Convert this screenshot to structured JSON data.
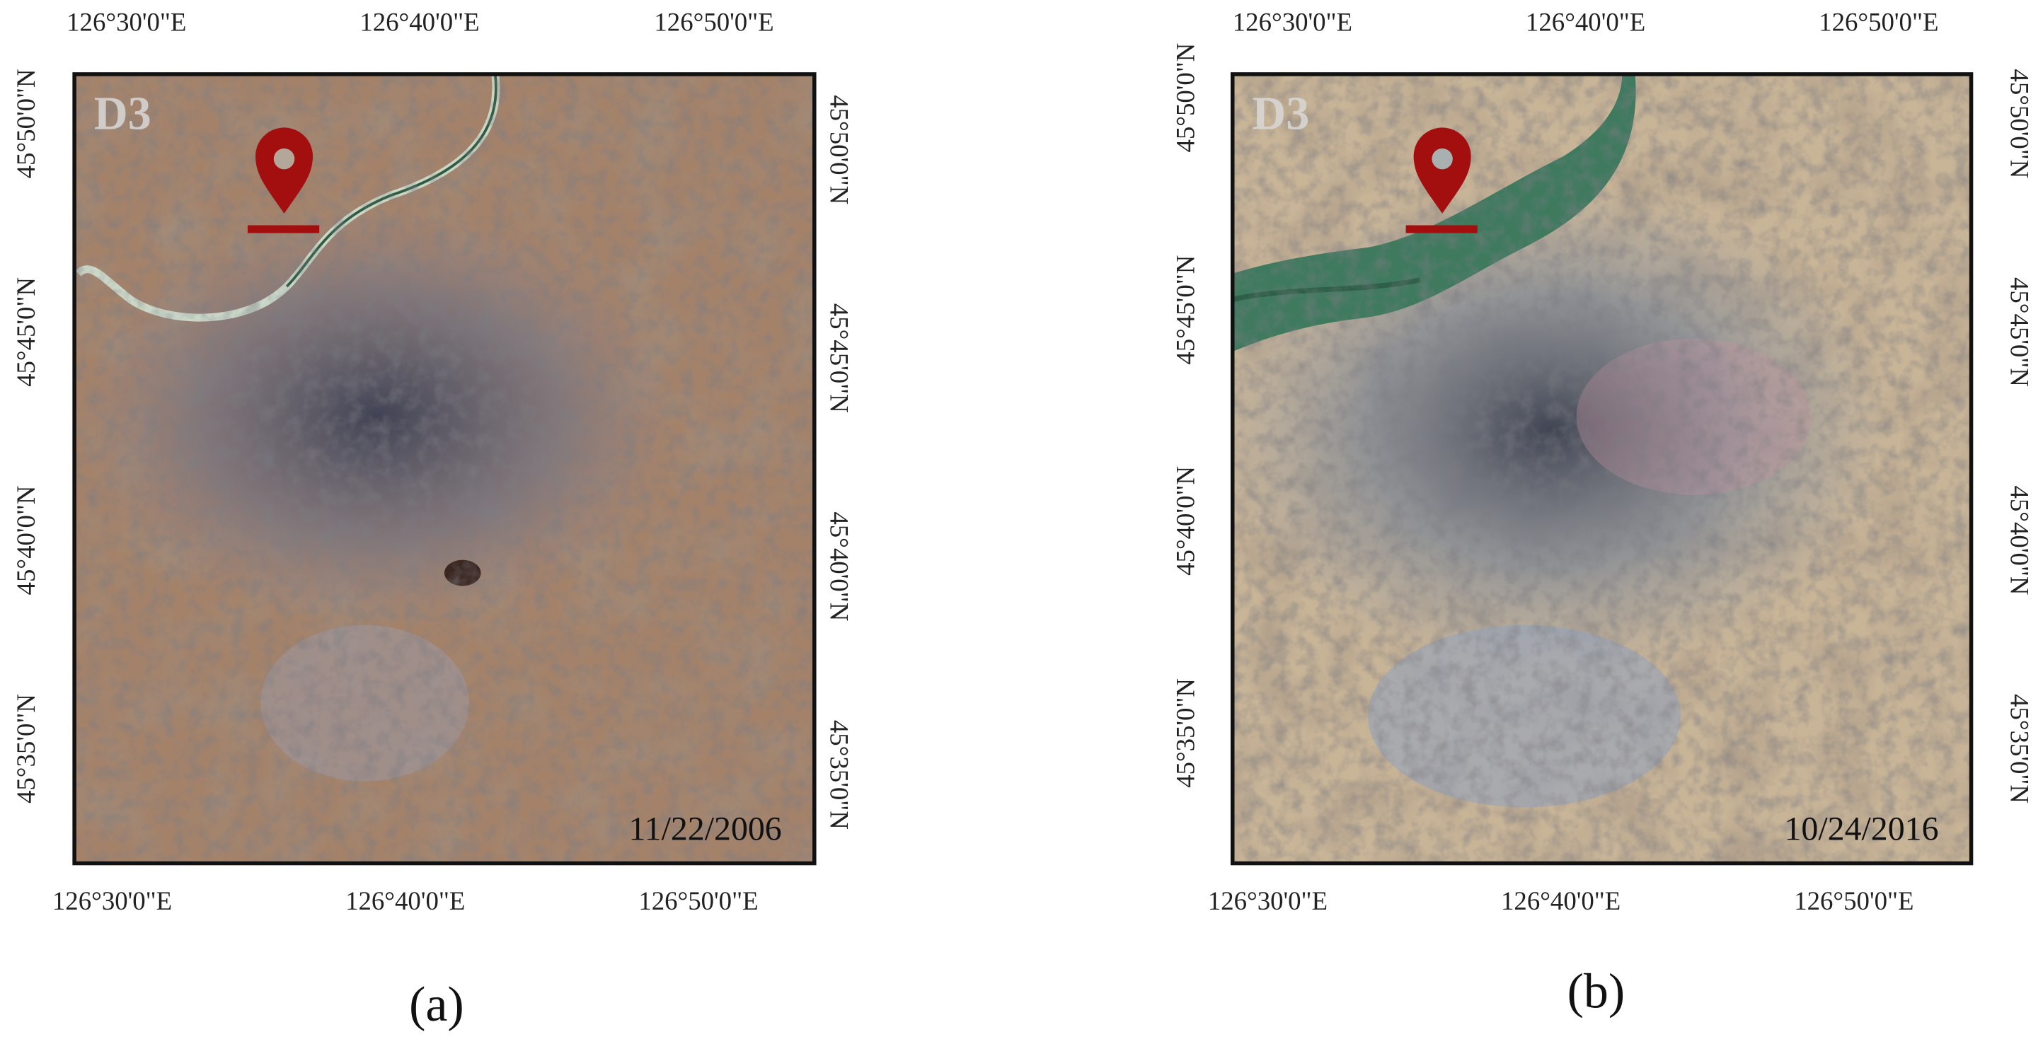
{
  "panels": [
    {
      "label": "D3",
      "date": "11/22/2006",
      "caption": "(a)",
      "top_labels": [
        "126°30'0\"E",
        "126°40'0\"E",
        "126°50'0\"E"
      ],
      "bottom_labels": [
        "126°30'0\"E",
        "126°40'0\"E",
        "126°50'0\"E"
      ],
      "left_labels": [
        "45°50'0\"N",
        "45°45'0\"N",
        "45°40'0\"N",
        "45°35'0\"N"
      ],
      "right_labels": [
        "45°50'0\"N",
        "45°45'0\"N",
        "45°40'0\"N",
        "45°35'0\"N"
      ]
    },
    {
      "label": "D3",
      "date": "10/24/2016",
      "caption": "(b)",
      "top_labels": [
        "126°30'0\"E",
        "126°40'0\"E",
        "126°50'0\"E"
      ],
      "bottom_labels": [
        "126°30'0\"E",
        "126°40'0\"E",
        "126°50'0\"E"
      ],
      "left_labels": [
        "45°50'0\"N",
        "45°45'0\"N",
        "45°40'0\"N",
        "45°35'0\"N"
      ],
      "right_labels": [
        "45°50'0\"N",
        "45°45'0\"N",
        "45°40'0\"N",
        "45°35'0\"N"
      ]
    }
  ]
}
